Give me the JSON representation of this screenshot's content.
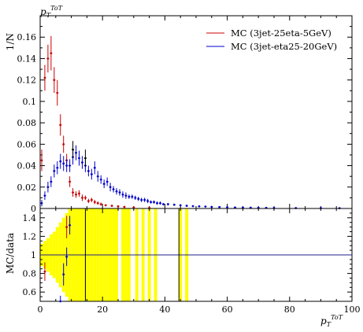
{
  "chart_data": [
    {
      "panel": "main",
      "type": "scatter",
      "title": "p_T^ToT",
      "ylabel": "1/N",
      "xlim": [
        0,
        100
      ],
      "ylim": [
        0,
        0.18
      ],
      "x_ticks": [
        0,
        20,
        40,
        60,
        80,
        100
      ],
      "y_ticks": [
        0.02,
        0.04,
        0.06,
        0.08,
        0.1,
        0.12,
        0.14,
        0.16
      ],
      "y_tick_labels": [
        "0.02",
        "0.04",
        "0.06",
        "0.08",
        "0.1",
        "0.12",
        "0.14",
        "0.16"
      ],
      "legend_position": "top-right",
      "series": [
        {
          "name": "MC (3jet-25eta-5GeV)",
          "color": "#cc0000",
          "points": [
            [
              0.5,
              0.045,
              0.01
            ],
            [
              1.5,
              0.122,
              0.012
            ],
            [
              2.5,
              0.14,
              0.013
            ],
            [
              3.5,
              0.145,
              0.016
            ],
            [
              4.5,
              0.12,
              0.012
            ],
            [
              5.5,
              0.108,
              0.012
            ],
            [
              6.5,
              0.078,
              0.01
            ],
            [
              7.5,
              0.06,
              0.008
            ],
            [
              8.5,
              0.045,
              0.006
            ],
            [
              9.5,
              0.025,
              0.005
            ],
            [
              10.5,
              0.015,
              0.004
            ],
            [
              11.5,
              0.013,
              0.003
            ],
            [
              12.5,
              0.014,
              0.003
            ],
            [
              13.5,
              0.01,
              0.003
            ],
            [
              14.5,
              0.01,
              0.002
            ],
            [
              15.5,
              0.007,
              0.002
            ],
            [
              16.5,
              0.008,
              0.002
            ],
            [
              17.5,
              0.006,
              0.002
            ],
            [
              18.5,
              0.005,
              0.0015
            ],
            [
              19.5,
              0.004,
              0.0015
            ],
            [
              21,
              0.003,
              0.001
            ],
            [
              23,
              0.0025,
              0.001
            ],
            [
              25,
              0.002,
              0.001
            ],
            [
              27,
              0.0015,
              0.0008
            ],
            [
              30,
              0.001,
              0.0005
            ],
            [
              35,
              0.0006,
              0.0004
            ]
          ]
        },
        {
          "name": "MC (3jet-eta25-20GeV)",
          "color": "#0000cc",
          "points": [
            [
              0.5,
              0.005,
              0.003
            ],
            [
              1.5,
              0.012,
              0.004
            ],
            [
              2.5,
              0.02,
              0.005
            ],
            [
              3.5,
              0.025,
              0.005
            ],
            [
              4.5,
              0.035,
              0.006
            ],
            [
              5.5,
              0.038,
              0.006
            ],
            [
              6.5,
              0.044,
              0.007
            ],
            [
              7.5,
              0.042,
              0.007
            ],
            [
              8.5,
              0.04,
              0.006
            ],
            [
              9.5,
              0.04,
              0.006
            ],
            [
              10.5,
              0.048,
              0.007
            ],
            [
              11.5,
              0.052,
              0.007
            ],
            [
              12.5,
              0.047,
              0.007
            ],
            [
              13.5,
              0.043,
              0.006
            ],
            [
              14.5,
              0.04,
              0.006
            ],
            [
              15.5,
              0.035,
              0.005
            ],
            [
              16.5,
              0.032,
              0.005
            ],
            [
              17.5,
              0.038,
              0.006
            ],
            [
              18.5,
              0.03,
              0.005
            ],
            [
              19.5,
              0.027,
              0.004
            ],
            [
              20.5,
              0.023,
              0.004
            ],
            [
              21.5,
              0.025,
              0.004
            ],
            [
              22.5,
              0.02,
              0.004
            ],
            [
              23.5,
              0.018,
              0.003
            ],
            [
              24.5,
              0.016,
              0.003
            ],
            [
              25.5,
              0.015,
              0.003
            ],
            [
              26.5,
              0.013,
              0.003
            ],
            [
              27.5,
              0.012,
              0.003
            ],
            [
              28.5,
              0.011,
              0.002
            ],
            [
              29.5,
              0.011,
              0.002
            ],
            [
              30.5,
              0.01,
              0.002
            ],
            [
              31.5,
              0.009,
              0.002
            ],
            [
              32.5,
              0.008,
              0.002
            ],
            [
              33.5,
              0.008,
              0.002
            ],
            [
              34.5,
              0.007,
              0.002
            ],
            [
              35.5,
              0.006,
              0.0015
            ],
            [
              36.5,
              0.006,
              0.0015
            ],
            [
              37.5,
              0.005,
              0.0015
            ],
            [
              38.5,
              0.005,
              0.0015
            ],
            [
              39.5,
              0.004,
              0.0012
            ],
            [
              41,
              0.004,
              0.0012
            ],
            [
              43,
              0.0035,
              0.001
            ],
            [
              45,
              0.003,
              0.001
            ],
            [
              47,
              0.0025,
              0.001
            ],
            [
              49,
              0.0022,
              0.0008
            ],
            [
              51,
              0.002,
              0.0008
            ],
            [
              53,
              0.0018,
              0.0007
            ],
            [
              55,
              0.0015,
              0.0006
            ],
            [
              57.5,
              0.0013,
              0.0005
            ],
            [
              60,
              0.0012,
              0.0005
            ],
            [
              62.5,
              0.001,
              0.0004
            ],
            [
              65,
              0.0009,
              0.0004
            ],
            [
              67.5,
              0.0008,
              0.0004
            ],
            [
              70,
              0.0007,
              0.0003
            ],
            [
              72.5,
              0.0006,
              0.0003
            ],
            [
              75,
              0.0005,
              0.0003
            ],
            [
              82,
              0.0004,
              0.0002
            ],
            [
              90,
              0.0004,
              0.0002
            ],
            [
              96,
              0.0003,
              0.0002
            ]
          ]
        }
      ],
      "data_markers": [
        [
          10.5,
          0.055,
          0.008
        ],
        [
          14.5,
          0.047,
          0.008
        ]
      ]
    },
    {
      "panel": "ratio",
      "type": "scatter",
      "xlabel": "p_T^ToT",
      "ylabel": "MC/data",
      "xlim": [
        0,
        100
      ],
      "ylim": [
        0.5,
        1.5
      ],
      "x_ticks": [
        0,
        20,
        40,
        60,
        80,
        100
      ],
      "y_ticks": [
        0.6,
        0.8,
        1.0,
        1.2,
        1.4
      ],
      "y_tick_labels": [
        "0.6",
        "0.8",
        "1",
        "1.2",
        "1.4"
      ],
      "uncertainty_band": {
        "color": "#ffff00",
        "bins": [
          [
            0,
            1,
            0.12
          ],
          [
            1,
            2,
            0.15
          ],
          [
            2,
            3,
            0.18
          ],
          [
            3,
            4,
            0.22
          ],
          [
            4,
            5,
            0.25
          ],
          [
            5,
            6,
            0.3
          ],
          [
            6,
            7,
            0.35
          ],
          [
            7,
            8,
            0.4
          ],
          [
            8,
            9,
            0.45
          ],
          [
            9,
            10,
            0.5
          ],
          [
            10,
            11,
            0.55
          ],
          [
            11,
            12,
            0.6
          ],
          [
            12,
            13,
            0.65
          ],
          [
            13,
            14,
            0.7
          ],
          [
            14,
            15,
            0.75
          ],
          [
            15,
            16,
            0.8
          ],
          [
            16,
            17,
            1
          ],
          [
            17,
            18,
            1
          ],
          [
            18,
            19,
            1
          ],
          [
            19,
            20,
            1
          ],
          [
            20,
            21,
            1
          ],
          [
            21,
            22,
            1
          ],
          [
            22,
            23,
            1
          ],
          [
            23,
            24,
            1
          ],
          [
            24,
            25,
            1
          ],
          [
            26,
            27,
            1
          ],
          [
            27,
            28,
            1
          ],
          [
            28,
            29,
            1
          ],
          [
            30.5,
            31.5,
            1
          ],
          [
            32.5,
            33.5,
            1
          ],
          [
            34.5,
            35.5,
            1
          ],
          [
            36.5,
            37.5,
            1
          ],
          [
            44.5,
            45.5,
            1
          ],
          [
            46.5,
            47.5,
            1
          ]
        ]
      },
      "series": [
        {
          "name": "MC (3jet-25eta-5GeV)",
          "color": "#cc0000",
          "points": [
            [
              1.5,
              0.82,
              0.1
            ],
            [
              8.5,
              1.3,
              0.12
            ]
          ]
        },
        {
          "name": "MC (3jet-eta25-20GeV)",
          "color": "#0000cc",
          "points": [
            [
              7.5,
              0.79,
              0.12
            ],
            [
              8.5,
              0.98,
              0.1
            ],
            [
              9.5,
              1.32,
              0.1
            ],
            [
              6.5,
              0.5,
              0.06
            ]
          ]
        }
      ],
      "reference_value": 1.0,
      "vertical_markers": [
        14.5,
        44.5
      ]
    }
  ]
}
